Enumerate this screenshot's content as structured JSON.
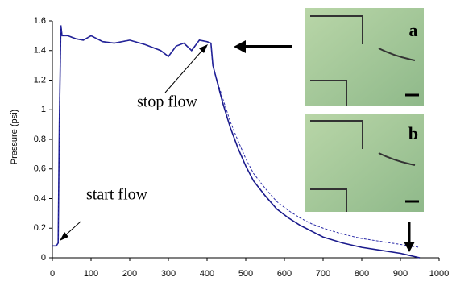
{
  "chart_data": {
    "type": "line",
    "y_label": "Pressure (psi)",
    "annotations": [
      "stop flow",
      "start flow",
      "a",
      "b"
    ],
    "x": [
      0,
      10,
      15,
      18,
      22,
      25,
      40,
      60,
      80,
      100,
      130,
      160,
      200,
      240,
      280,
      300,
      320,
      340,
      360,
      380,
      400,
      410,
      415,
      420,
      440,
      460,
      480,
      500,
      520,
      550,
      580,
      610,
      640,
      670,
      700,
      750,
      800,
      850,
      900,
      950
    ],
    "series": [
      {
        "color": "#1a1a8c",
        "values": [
          0.08,
          0.08,
          0.1,
          0.9,
          1.57,
          1.5,
          1.5,
          1.48,
          1.47,
          1.5,
          1.46,
          1.45,
          1.47,
          1.44,
          1.4,
          1.36,
          1.43,
          1.45,
          1.4,
          1.47,
          1.46,
          1.45,
          1.3,
          1.25,
          1.05,
          0.88,
          0.74,
          0.62,
          0.52,
          0.42,
          0.33,
          0.27,
          0.22,
          0.18,
          0.14,
          0.1,
          0.07,
          0.05,
          0.03,
          0.0
        ]
      },
      {
        "color": "#2a2aa8",
        "values": [
          0.08,
          0.08,
          0.1,
          0.9,
          1.57,
          1.5,
          1.5,
          1.48,
          1.47,
          1.5,
          1.46,
          1.45,
          1.47,
          1.44,
          1.4,
          1.36,
          1.43,
          1.45,
          1.4,
          1.47,
          1.46,
          1.45,
          1.3,
          1.25,
          1.08,
          0.92,
          0.79,
          0.67,
          0.57,
          0.47,
          0.38,
          0.32,
          0.27,
          0.23,
          0.2,
          0.16,
          0.13,
          0.11,
          0.09,
          0.07
        ]
      }
    ],
    "xlim": [
      0,
      1000
    ],
    "xticks": [
      0,
      100,
      200,
      300,
      400,
      500,
      600,
      700,
      800,
      900,
      1000
    ],
    "ylim": [
      0,
      1.6
    ],
    "yticks": [
      0,
      0.2,
      0.4,
      0.6,
      0.8,
      1,
      1.2,
      1.4,
      1.6
    ]
  }
}
